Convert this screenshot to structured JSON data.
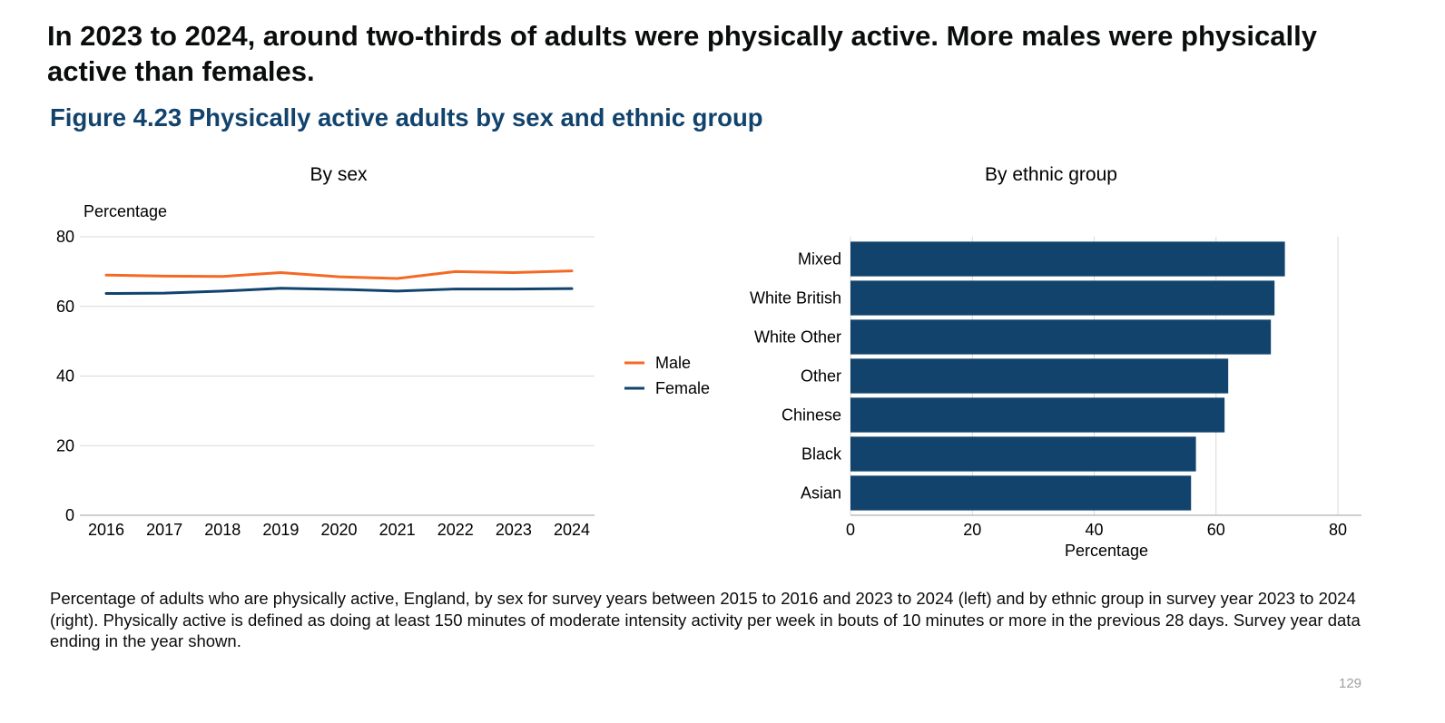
{
  "headline": "In 2023 to 2024, around two-thirds of adults were physically active. More males were physically active than females.",
  "figure_title": "Figure 4.23 Physically active adults by sex and ethnic group",
  "colors": {
    "male": "#f46a25",
    "female": "#12436d",
    "bar": "#12436d",
    "gridline": "#d9d9d9",
    "title_blue": "#12436d"
  },
  "chart_data": [
    {
      "type": "line",
      "title": "By sex",
      "ylabel": "Percentage",
      "xlabel": "",
      "ylim": [
        0,
        80
      ],
      "yticks": [
        0,
        20,
        40,
        60,
        80
      ],
      "categories": [
        "2016",
        "2017",
        "2018",
        "2019",
        "2020",
        "2021",
        "2022",
        "2023",
        "2024"
      ],
      "series": [
        {
          "name": "Male",
          "color": "#f46a25",
          "values": [
            69.0,
            68.7,
            68.6,
            69.7,
            68.5,
            68.0,
            70.0,
            69.7,
            70.2
          ]
        },
        {
          "name": "Female",
          "color": "#12436d",
          "values": [
            63.7,
            63.8,
            64.4,
            65.2,
            64.9,
            64.4,
            65.0,
            65.0,
            65.1
          ]
        }
      ],
      "legend": [
        "Male",
        "Female"
      ],
      "legend_position": "right",
      "grid": true
    },
    {
      "type": "bar",
      "orientation": "horizontal",
      "title": "By ethnic group",
      "xlabel": "Percentage",
      "ylabel": "",
      "xlim": [
        0,
        80
      ],
      "xticks": [
        0,
        20,
        40,
        60,
        80
      ],
      "categories": [
        "Mixed",
        "White British",
        "White Other",
        "Other",
        "Chinese",
        "Black",
        "Asian"
      ],
      "values": [
        71.3,
        69.6,
        69.0,
        62.0,
        61.4,
        56.7,
        55.9
      ],
      "grid": true
    }
  ],
  "caption": "Percentage of adults who are physically active, England, by sex for survey years between 2015 to 2016 and 2023 to 2024 (left) and by ethnic group in survey year 2023 to 2024 (right). Physically active is defined as doing at least 150 minutes of moderate intensity activity per week in bouts of 10 minutes or more in the previous 28 days. Survey year data ending in the year shown.",
  "page_number": "129"
}
